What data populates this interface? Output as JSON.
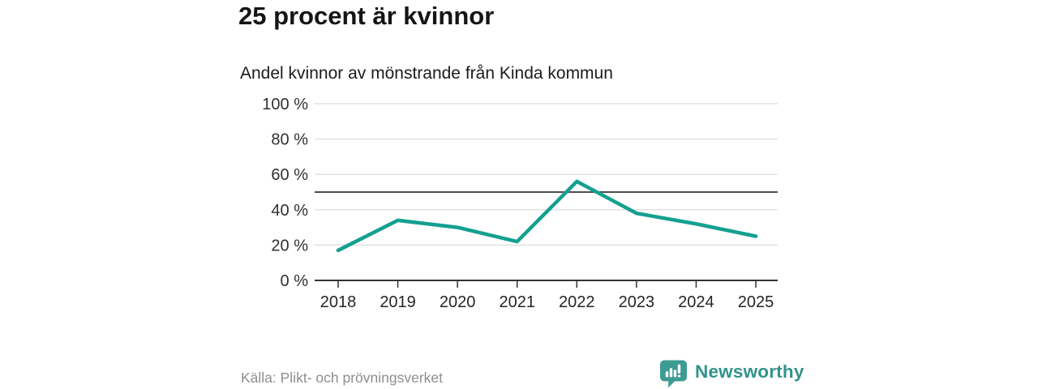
{
  "page": {
    "background_color": "#ffffff"
  },
  "chart_data": {
    "type": "line",
    "title": "25 procent är kvinnor",
    "subtitle": "Andel kvinnor av mönstrande från Kinda kommun",
    "categories": [
      "2018",
      "2019",
      "2020",
      "2021",
      "2022",
      "2023",
      "2024",
      "2025"
    ],
    "series": [
      {
        "name": "Andel kvinnor av mönstrande",
        "values": [
          17,
          34,
          30,
          22,
          56,
          38,
          32,
          25
        ]
      }
    ],
    "unit": "%",
    "xlabel": "",
    "ylabel": "",
    "ylim": [
      0,
      100
    ],
    "yticks": [
      0,
      20,
      40,
      60,
      80,
      100
    ],
    "ytick_format": "{v} %",
    "reference_line_y": 50,
    "grid": true,
    "legend": "none",
    "colors": {
      "line": "#14a090",
      "gridline": "#dcdcdc",
      "reference_line": "#4f4f4f",
      "axis": "#333333",
      "ytick_label": "#303030",
      "xtick_label": "#262626"
    }
  },
  "footer": {
    "source": "Källa: Plikt- och prövningsverket",
    "brand": {
      "name": "Newsworthy",
      "wordmark_color": "#31938b",
      "icon_color": "#3d9b93",
      "icon": "newsworthy-speech-bubble-bar-chart-icon"
    }
  }
}
